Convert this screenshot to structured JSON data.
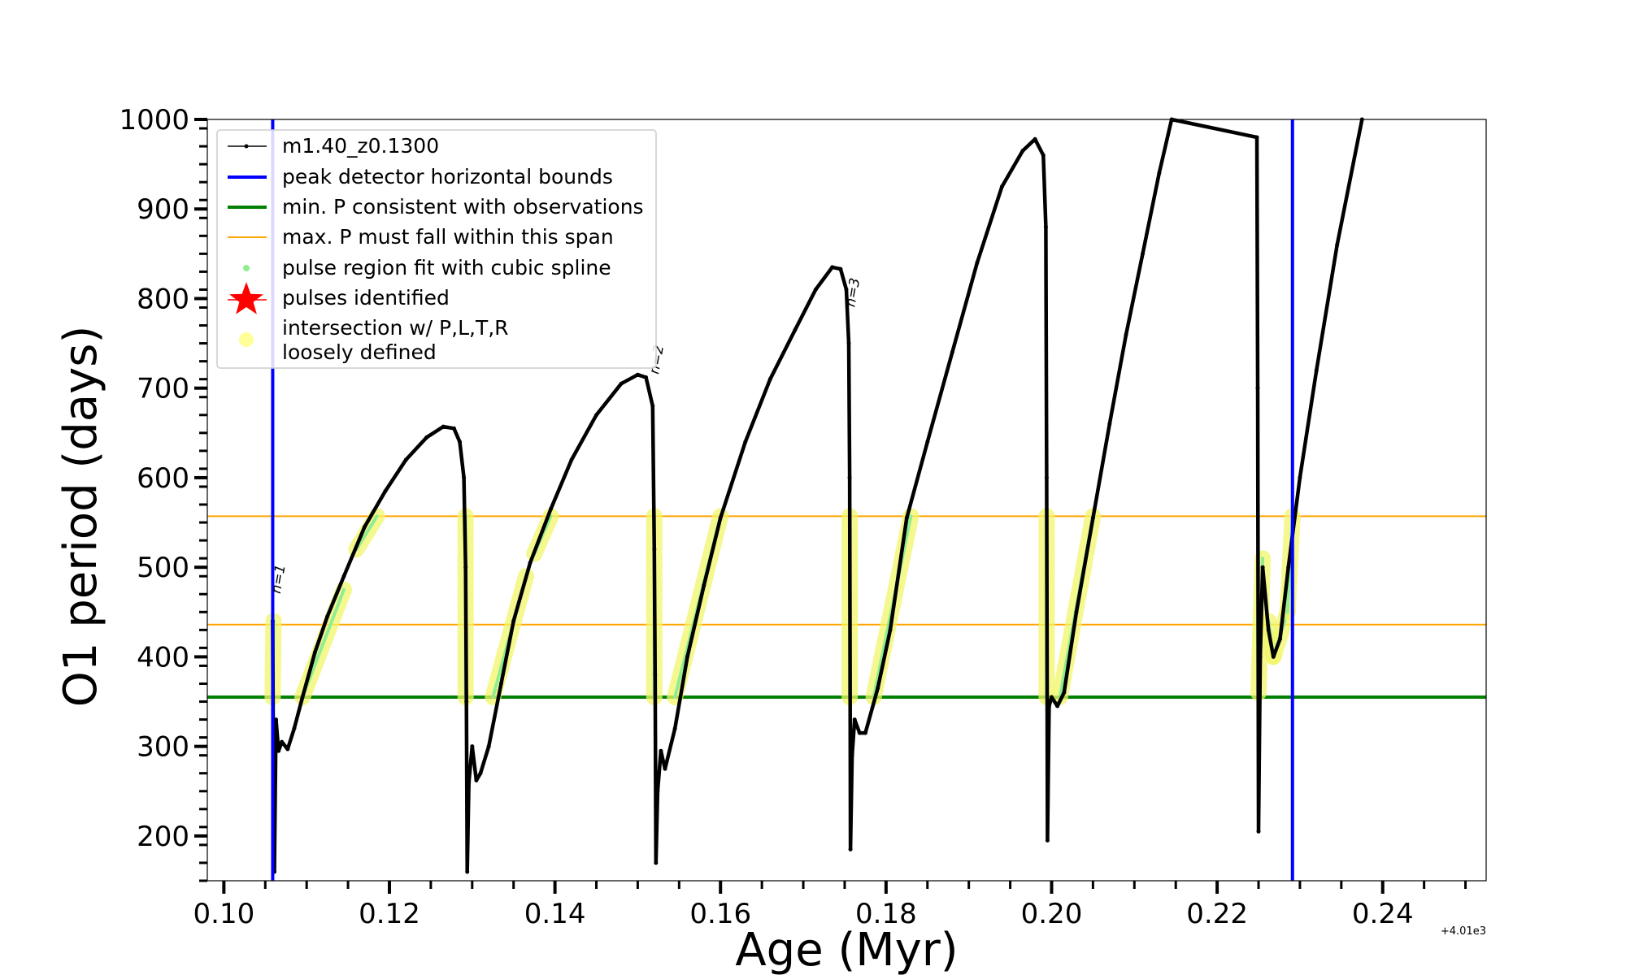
{
  "chart_data": {
    "type": "line",
    "xlabel": "Age (Myr)",
    "ylabel": "O1 period (days)",
    "x_offset_label": "+4.01e3",
    "xlim": [
      0.098,
      0.2525
    ],
    "ylim": [
      150,
      1000
    ],
    "x_ticks": [
      0.1,
      0.12,
      0.14,
      0.16,
      0.18,
      0.2,
      0.22,
      0.24
    ],
    "x_tick_labels": [
      "0.10",
      "0.12",
      "0.14",
      "0.16",
      "0.18",
      "0.20",
      "0.22",
      "0.24"
    ],
    "y_ticks": [
      200,
      300,
      400,
      500,
      600,
      700,
      800,
      900,
      1000
    ],
    "y_tick_labels": [
      "200",
      "300",
      "400",
      "500",
      "600",
      "700",
      "800",
      "900",
      "1000"
    ],
    "legend_position": "top-left",
    "legend": [
      {
        "label": "m1.40_z0.1300",
        "color": "#000000",
        "kind": "line-marker"
      },
      {
        "label": "peak detector horizontal bounds",
        "color": "#0000ff",
        "kind": "thick-line"
      },
      {
        "label": "min. P consistent with observations",
        "color": "#008000",
        "kind": "thick-line"
      },
      {
        "label": "max. P must fall within this span",
        "color": "#ffa500",
        "kind": "thin-line"
      },
      {
        "label": "pulse region fit with cubic spline",
        "color": "#90ee90",
        "kind": "dot"
      },
      {
        "label": "pulses identified",
        "color": "#ff0000",
        "kind": "star"
      },
      {
        "label": "intersection w/ P,L,T,R",
        "label2": "loosely defined",
        "color": "#ffff99",
        "kind": "circle"
      }
    ],
    "vertical_bounds": {
      "color": "#0000ff",
      "x": [
        0.1059,
        0.2291
      ]
    },
    "min_period_line": {
      "color": "#008000",
      "y": 355
    },
    "max_period_span": {
      "color": "#ffa500",
      "y": [
        436,
        557
      ]
    },
    "series": [
      {
        "name": "m1.40_z0.1300",
        "color": "#000000",
        "points": [
          [
            0.1059,
            440
          ],
          [
            0.106,
            240
          ],
          [
            0.1061,
            160
          ],
          [
            0.1063,
            330
          ],
          [
            0.1066,
            295
          ],
          [
            0.107,
            305
          ],
          [
            0.1077,
            297
          ],
          [
            0.1085,
            320
          ],
          [
            0.1095,
            355
          ],
          [
            0.111,
            405
          ],
          [
            0.1125,
            445
          ],
          [
            0.1145,
            490
          ],
          [
            0.117,
            545
          ],
          [
            0.1195,
            585
          ],
          [
            0.122,
            620
          ],
          [
            0.1245,
            645
          ],
          [
            0.1265,
            657
          ],
          [
            0.1278,
            655
          ],
          [
            0.1285,
            640
          ],
          [
            0.129,
            600
          ],
          [
            0.1292,
            500
          ],
          [
            0.1293,
            350
          ],
          [
            0.1294,
            160
          ],
          [
            0.1296,
            260
          ],
          [
            0.13,
            300
          ],
          [
            0.1305,
            262
          ],
          [
            0.131,
            270
          ],
          [
            0.132,
            300
          ],
          [
            0.1335,
            370
          ],
          [
            0.135,
            440
          ],
          [
            0.137,
            505
          ],
          [
            0.1395,
            565
          ],
          [
            0.142,
            620
          ],
          [
            0.145,
            670
          ],
          [
            0.148,
            705
          ],
          [
            0.15,
            715
          ],
          [
            0.151,
            712
          ],
          [
            0.1518,
            680
          ],
          [
            0.152,
            520
          ],
          [
            0.1521,
            380
          ],
          [
            0.1522,
            170
          ],
          [
            0.1524,
            250
          ],
          [
            0.1528,
            295
          ],
          [
            0.1533,
            275
          ],
          [
            0.1545,
            320
          ],
          [
            0.156,
            400
          ],
          [
            0.158,
            480
          ],
          [
            0.16,
            555
          ],
          [
            0.163,
            640
          ],
          [
            0.166,
            710
          ],
          [
            0.169,
            765
          ],
          [
            0.1715,
            810
          ],
          [
            0.1735,
            835
          ],
          [
            0.1745,
            833
          ],
          [
            0.1752,
            810
          ],
          [
            0.1755,
            750
          ],
          [
            0.1756,
            600
          ],
          [
            0.1757,
            185
          ],
          [
            0.1759,
            290
          ],
          [
            0.1762,
            330
          ],
          [
            0.1768,
            315
          ],
          [
            0.1775,
            315
          ],
          [
            0.179,
            365
          ],
          [
            0.1805,
            430
          ],
          [
            0.1825,
            555
          ],
          [
            0.185,
            640
          ],
          [
            0.188,
            740
          ],
          [
            0.191,
            840
          ],
          [
            0.194,
            925
          ],
          [
            0.1965,
            965
          ],
          [
            0.198,
            978
          ],
          [
            0.199,
            960
          ],
          [
            0.1993,
            880
          ],
          [
            0.1994,
            600
          ],
          [
            0.1995,
            195
          ],
          [
            0.1997,
            345
          ],
          [
            0.2,
            355
          ],
          [
            0.2007,
            345
          ],
          [
            0.2015,
            360
          ],
          [
            0.203,
            450
          ],
          [
            0.205,
            555
          ],
          [
            0.207,
            660
          ],
          [
            0.209,
            760
          ],
          [
            0.211,
            850
          ],
          [
            0.213,
            940
          ],
          [
            0.2145,
            1000
          ],
          [
            0.2248,
            980
          ],
          [
            0.2249,
            700
          ],
          [
            0.225,
            205
          ],
          [
            0.2252,
            400
          ],
          [
            0.2255,
            500
          ],
          [
            0.2262,
            430
          ],
          [
            0.2268,
            400
          ],
          [
            0.2276,
            420
          ],
          [
            0.2286,
            500
          ],
          [
            0.23,
            600
          ],
          [
            0.232,
            720
          ],
          [
            0.2345,
            860
          ],
          [
            0.2375,
            1000
          ]
        ]
      }
    ],
    "spline_segments": [
      [
        [
          0.1059,
          355
        ],
        [
          0.106,
          440
        ]
      ],
      [
        [
          0.1095,
          355
        ],
        [
          0.1145,
          475
        ]
      ],
      [
        [
          0.116,
          520
        ],
        [
          0.1185,
          557
        ]
      ],
      [
        [
          0.1292,
          355
        ],
        [
          0.1292,
          557
        ]
      ],
      [
        [
          0.1325,
          355
        ],
        [
          0.1365,
          490
        ]
      ],
      [
        [
          0.1375,
          515
        ],
        [
          0.1395,
          557
        ]
      ],
      [
        [
          0.152,
          355
        ],
        [
          0.152,
          557
        ]
      ],
      [
        [
          0.1545,
          355
        ],
        [
          0.16,
          557
        ]
      ],
      [
        [
          0.1756,
          355
        ],
        [
          0.1756,
          557
        ]
      ],
      [
        [
          0.1785,
          355
        ],
        [
          0.183,
          557
        ]
      ],
      [
        [
          0.1994,
          355
        ],
        [
          0.1994,
          557
        ]
      ],
      [
        [
          0.201,
          355
        ],
        [
          0.205,
          557
        ]
      ],
      [
        [
          0.225,
          360
        ],
        [
          0.2255,
          510
        ]
      ],
      [
        [
          0.2262,
          440
        ],
        [
          0.2268,
          400
        ]
      ],
      [
        [
          0.2268,
          400
        ],
        [
          0.2285,
          450
        ]
      ],
      [
        [
          0.2285,
          450
        ],
        [
          0.2291,
          557
        ]
      ]
    ],
    "pulse_labels": [
      {
        "text": "n=1",
        "x": 0.1068,
        "y": 470,
        "color": "#000000"
      },
      {
        "text": "n=2",
        "x": 0.1525,
        "y": 715,
        "color": "#bbbbbb"
      },
      {
        "text": "n=3",
        "x": 0.1762,
        "y": 790,
        "color": "#000000"
      }
    ]
  }
}
